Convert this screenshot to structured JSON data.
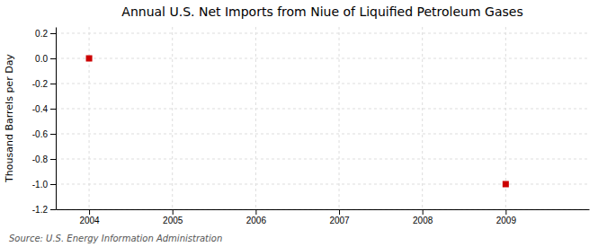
{
  "chart_data": {
    "type": "scatter",
    "title": "Annual U.S. Net Imports from Niue of Liquified Petroleum Gases",
    "ylabel": "Thousand Barrels per Day",
    "annotations": [
      "Source: U.S. Energy Information Administration"
    ],
    "x": [
      2004,
      2009
    ],
    "values": [
      0.0,
      -1.0
    ],
    "color": "#cc0000",
    "marker": "square",
    "xlim": [
      2003.6,
      2010.0
    ],
    "ylim": [
      -1.2,
      0.25
    ],
    "xticks": [
      2004,
      2005,
      2006,
      2007,
      2008,
      2009
    ],
    "yticks": [
      0.2,
      {
        "value": 0.0,
        "label": "0.0"
      },
      -0.2,
      -0.4,
      -0.6,
      -0.8,
      {
        "value": -1.0,
        "label": "-1.0"
      },
      -1.2
    ],
    "grid": true
  }
}
